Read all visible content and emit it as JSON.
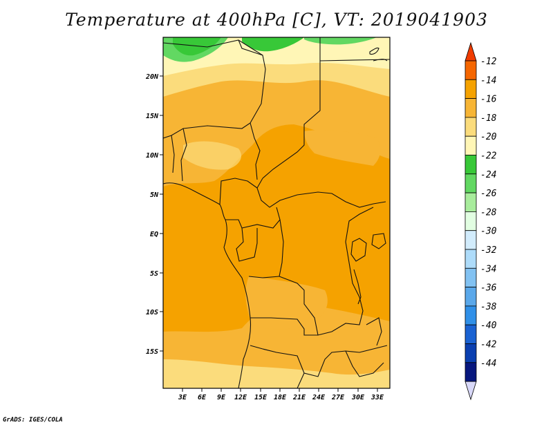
{
  "title": "Temperature at 400hPa [C], VT: 2019041903",
  "credit": "GrADS: IGES/COLA",
  "map": {
    "lat_labels": [
      "20N",
      "15N",
      "10N",
      "5N",
      "EQ",
      "5S",
      "10S",
      "15S"
    ],
    "lon_labels": [
      "3E",
      "6E",
      "9E",
      "12E",
      "15E",
      "18E",
      "21E",
      "24E",
      "27E",
      "30E",
      "33E"
    ]
  },
  "colorbar": {
    "labels": [
      "-12",
      "-14",
      "-16",
      "-18",
      "-20",
      "-22",
      "-24",
      "-26",
      "-28",
      "-30",
      "-32",
      "-34",
      "-36",
      "-38",
      "-40",
      "-42",
      "-44"
    ],
    "colors_top_to_bottom": [
      "#f03c00",
      "#f56600",
      "#f5a200",
      "#f7b535",
      "#fbdc7c",
      "#fff6b6",
      "#38c838",
      "#62d862",
      "#a8ec9c",
      "#e2fee2",
      "#d2ecfc",
      "#aedcfa",
      "#82c2f2",
      "#5aa8ea",
      "#3090e8",
      "#1a62d2",
      "#0a3fb0",
      "#07177e",
      "#d8d8f8"
    ],
    "colors": {
      "c_m12": "#f03c00",
      "c_m14": "#f56600",
      "c_m16": "#f5a200",
      "c_m18": "#f7b535",
      "c_m20": "#fbdc7c",
      "c_m22": "#fff6b6",
      "c_m24": "#38c838",
      "c_m26": "#62d862"
    }
  }
}
